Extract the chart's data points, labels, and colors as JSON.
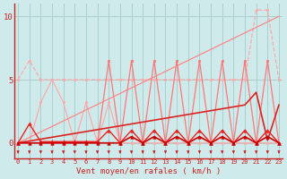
{
  "bg_color": "#ceeaea",
  "grid_color": "#aacece",
  "x_labels": [
    "0",
    "1",
    "2",
    "3",
    "4",
    "5",
    "6",
    "7",
    "8",
    "9",
    "10",
    "11",
    "12",
    "13",
    "14",
    "15",
    "16",
    "17",
    "18",
    "19",
    "20",
    "21",
    "22",
    "23"
  ],
  "x_values": [
    0,
    1,
    2,
    3,
    4,
    5,
    6,
    7,
    8,
    9,
    10,
    11,
    12,
    13,
    14,
    15,
    16,
    17,
    18,
    19,
    20,
    21,
    22,
    23
  ],
  "yticks": [
    0,
    5,
    10
  ],
  "ylim": [
    -1.2,
    11.0
  ],
  "xlim": [
    -0.3,
    23.3
  ],
  "xlabel": "Vent moyen/en rafales ( km/h )",
  "series": [
    {
      "color": "#ffaaaa",
      "linewidth": 0.9,
      "linestyle": "--",
      "marker": "s",
      "markersize": 2.0,
      "values": [
        5.0,
        6.5,
        5.0,
        5.0,
        5.0,
        5.0,
        5.0,
        5.0,
        5.0,
        5.0,
        5.0,
        5.0,
        5.0,
        5.0,
        5.0,
        5.0,
        5.0,
        5.0,
        5.0,
        5.0,
        5.0,
        10.5,
        10.5,
        5.0
      ]
    },
    {
      "color": "#ffaaaa",
      "linewidth": 0.9,
      "linestyle": "-",
      "marker": "s",
      "markersize": 2.0,
      "values": [
        0,
        0,
        3.2,
        5.0,
        3.2,
        0,
        3.2,
        0,
        3.2,
        0,
        0,
        0,
        0,
        0,
        0,
        0,
        0,
        0,
        0,
        0,
        0,
        0,
        0,
        0
      ]
    },
    {
      "color": "#ff7777",
      "linewidth": 0.9,
      "linestyle": "-",
      "marker": "s",
      "markersize": 2.0,
      "values": [
        0,
        0,
        0,
        0,
        0,
        0,
        0,
        0,
        6.5,
        0,
        6.5,
        0,
        6.5,
        0,
        6.5,
        0,
        6.5,
        0,
        6.5,
        0,
        6.5,
        0,
        6.5,
        0
      ]
    },
    {
      "color": "#ff8888",
      "linewidth": 0.9,
      "linestyle": "-",
      "marker": null,
      "markersize": 0,
      "values": [
        0,
        0.43,
        0.87,
        1.3,
        1.74,
        2.17,
        2.61,
        3.04,
        3.48,
        3.91,
        4.35,
        4.78,
        5.22,
        5.65,
        6.09,
        6.52,
        6.96,
        7.39,
        7.83,
        8.26,
        8.7,
        9.13,
        9.57,
        10.0
      ]
    },
    {
      "color": "#dd2222",
      "linewidth": 1.2,
      "linestyle": "-",
      "marker": null,
      "markersize": 0,
      "values": [
        0,
        0.15,
        0.3,
        0.45,
        0.6,
        0.75,
        0.9,
        1.05,
        1.2,
        1.35,
        1.5,
        1.65,
        1.8,
        1.95,
        2.1,
        2.25,
        2.4,
        2.55,
        2.7,
        2.85,
        3.0,
        4.0,
        0.2,
        3.0
      ]
    },
    {
      "color": "#ee2222",
      "linewidth": 1.0,
      "linestyle": "-",
      "marker": "^",
      "markersize": 2.5,
      "values": [
        0,
        1.5,
        0.1,
        0.1,
        0.1,
        0.1,
        0.1,
        0.1,
        1.0,
        0,
        1.0,
        0,
        1.0,
        0,
        1.0,
        0,
        1.0,
        0,
        1.0,
        0,
        1.0,
        0,
        1.0,
        0
      ]
    },
    {
      "color": "#cc0000",
      "linewidth": 1.2,
      "linestyle": "-",
      "marker": "^",
      "markersize": 2.5,
      "values": [
        0,
        0,
        0,
        0,
        0,
        0,
        0,
        0,
        0,
        0,
        0.5,
        0,
        0.5,
        0,
        0.5,
        0,
        0.5,
        0,
        0.5,
        0,
        0.5,
        0,
        0.5,
        0
      ]
    }
  ],
  "arrow_color": "#cc2222",
  "axis_color": "#cc2222",
  "tick_color": "#cc2222",
  "xlabel_color": "#cc2222"
}
